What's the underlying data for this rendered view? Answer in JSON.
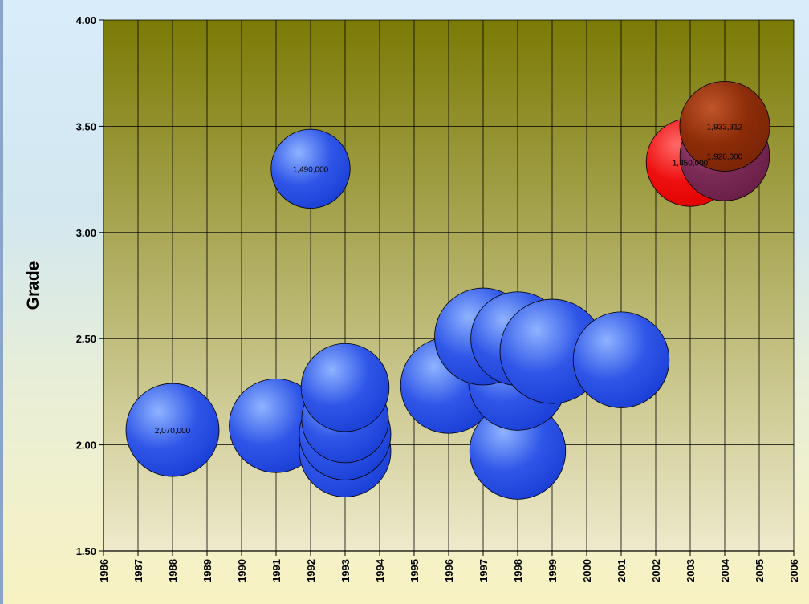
{
  "chart_data": {
    "type": "bubble",
    "title": "",
    "xlabel": "",
    "ylabel": "Grade",
    "xlim": [
      1986,
      2006
    ],
    "ylim": [
      1.5,
      4.0
    ],
    "x_ticks": [
      "1986",
      "1987",
      "1988",
      "1989",
      "1990",
      "1991",
      "1992",
      "1993",
      "1994",
      "1995",
      "1996",
      "1997",
      "1998",
      "1999",
      "2000",
      "2001",
      "2002",
      "2003",
      "2004",
      "2005",
      "2006"
    ],
    "y_ticks": [
      "1.50",
      "2.00",
      "2.50",
      "3.00",
      "3.50",
      "4.00"
    ],
    "grid": true,
    "colors": {
      "blue": "#2f56e8",
      "red": "#ee1010",
      "maroon": "#7a2a55",
      "brown": "#8c2c08",
      "plot_top": "#7b7a05",
      "plot_bottom": "#eeeacc"
    },
    "series": [
      {
        "x": 1988,
        "y": 2.07,
        "size": 2070000,
        "color": "blue",
        "label": "2,070,000"
      },
      {
        "x": 1991,
        "y": 2.09,
        "size": 2100000,
        "color": "blue",
        "label": ""
      },
      {
        "x": 1992,
        "y": 3.3,
        "size": 1490000,
        "color": "blue",
        "label": "1,490,000"
      },
      {
        "x": 1993,
        "y": 1.97,
        "size": 2000000,
        "color": "blue",
        "label": ""
      },
      {
        "x": 1993,
        "y": 2.05,
        "size": 2000000,
        "color": "blue",
        "label": ""
      },
      {
        "x": 1993,
        "y": 2.12,
        "size": 1800000,
        "color": "blue",
        "label": ""
      },
      {
        "x": 1993,
        "y": 2.27,
        "size": 1850000,
        "color": "blue",
        "label": ""
      },
      {
        "x": 1996,
        "y": 2.28,
        "size": 2200000,
        "color": "blue",
        "label": ""
      },
      {
        "x": 1998,
        "y": 1.97,
        "size": 2200000,
        "color": "blue",
        "label": ""
      },
      {
        "x": 1998,
        "y": 2.3,
        "size": 2300000,
        "color": "blue",
        "label": ""
      },
      {
        "x": 1997,
        "y": 2.51,
        "size": 2250000,
        "color": "blue",
        "label": ""
      },
      {
        "x": 1998,
        "y": 2.5,
        "size": 2100000,
        "color": "blue",
        "label": ""
      },
      {
        "x": 1999,
        "y": 2.44,
        "size": 2600000,
        "color": "blue",
        "label": ""
      },
      {
        "x": 2001,
        "y": 2.4,
        "size": 2200000,
        "color": "blue",
        "label": ""
      },
      {
        "x": 2003,
        "y": 3.33,
        "size": 1850000,
        "color": "red",
        "label": "1,850,000"
      },
      {
        "x": 2004,
        "y": 3.36,
        "size": 1920000,
        "color": "maroon",
        "label": "1,920,000"
      },
      {
        "x": 2004,
        "y": 3.5,
        "size": 1933312,
        "color": "brown",
        "label": "1,933,312"
      }
    ]
  }
}
